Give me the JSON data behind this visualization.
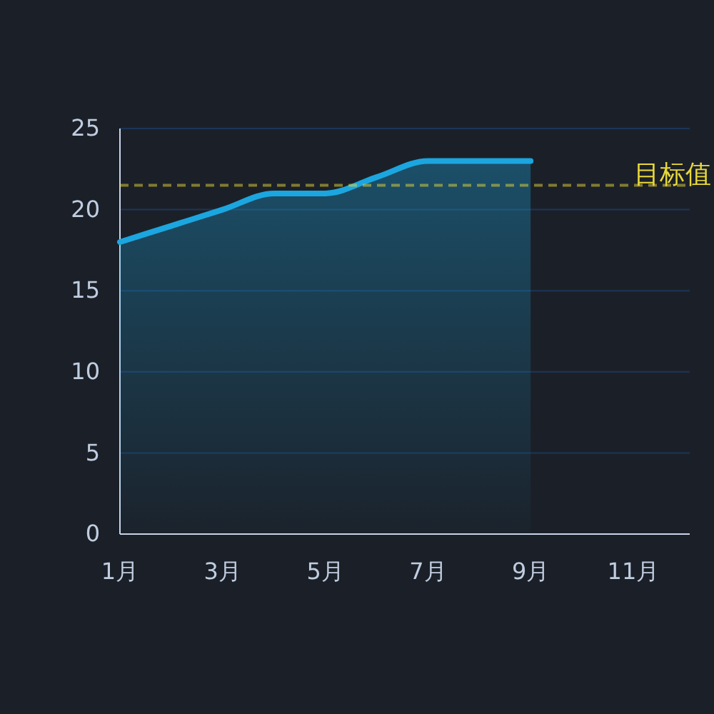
{
  "chart_data": {
    "type": "area",
    "categories": [
      "1月",
      null,
      "3月",
      null,
      "5月",
      null,
      "7月",
      null,
      "9月",
      null,
      "11月",
      null
    ],
    "series": [
      {
        "color": "#1ba6e0",
        "values": [
          18,
          19,
          20,
          21,
          21,
          22,
          23,
          23,
          23,
          null,
          null,
          null
        ]
      }
    ],
    "ylim": [
      0,
      25
    ],
    "yticks": [
      0,
      5,
      10,
      15,
      20,
      25
    ],
    "grid": "y",
    "marker": "none",
    "line_style": "solid",
    "ref_lines": [
      {
        "axis": "y",
        "value": 21.5,
        "label": "目标值",
        "color": "#e8d83a",
        "line_style": "dashed"
      }
    ]
  }
}
